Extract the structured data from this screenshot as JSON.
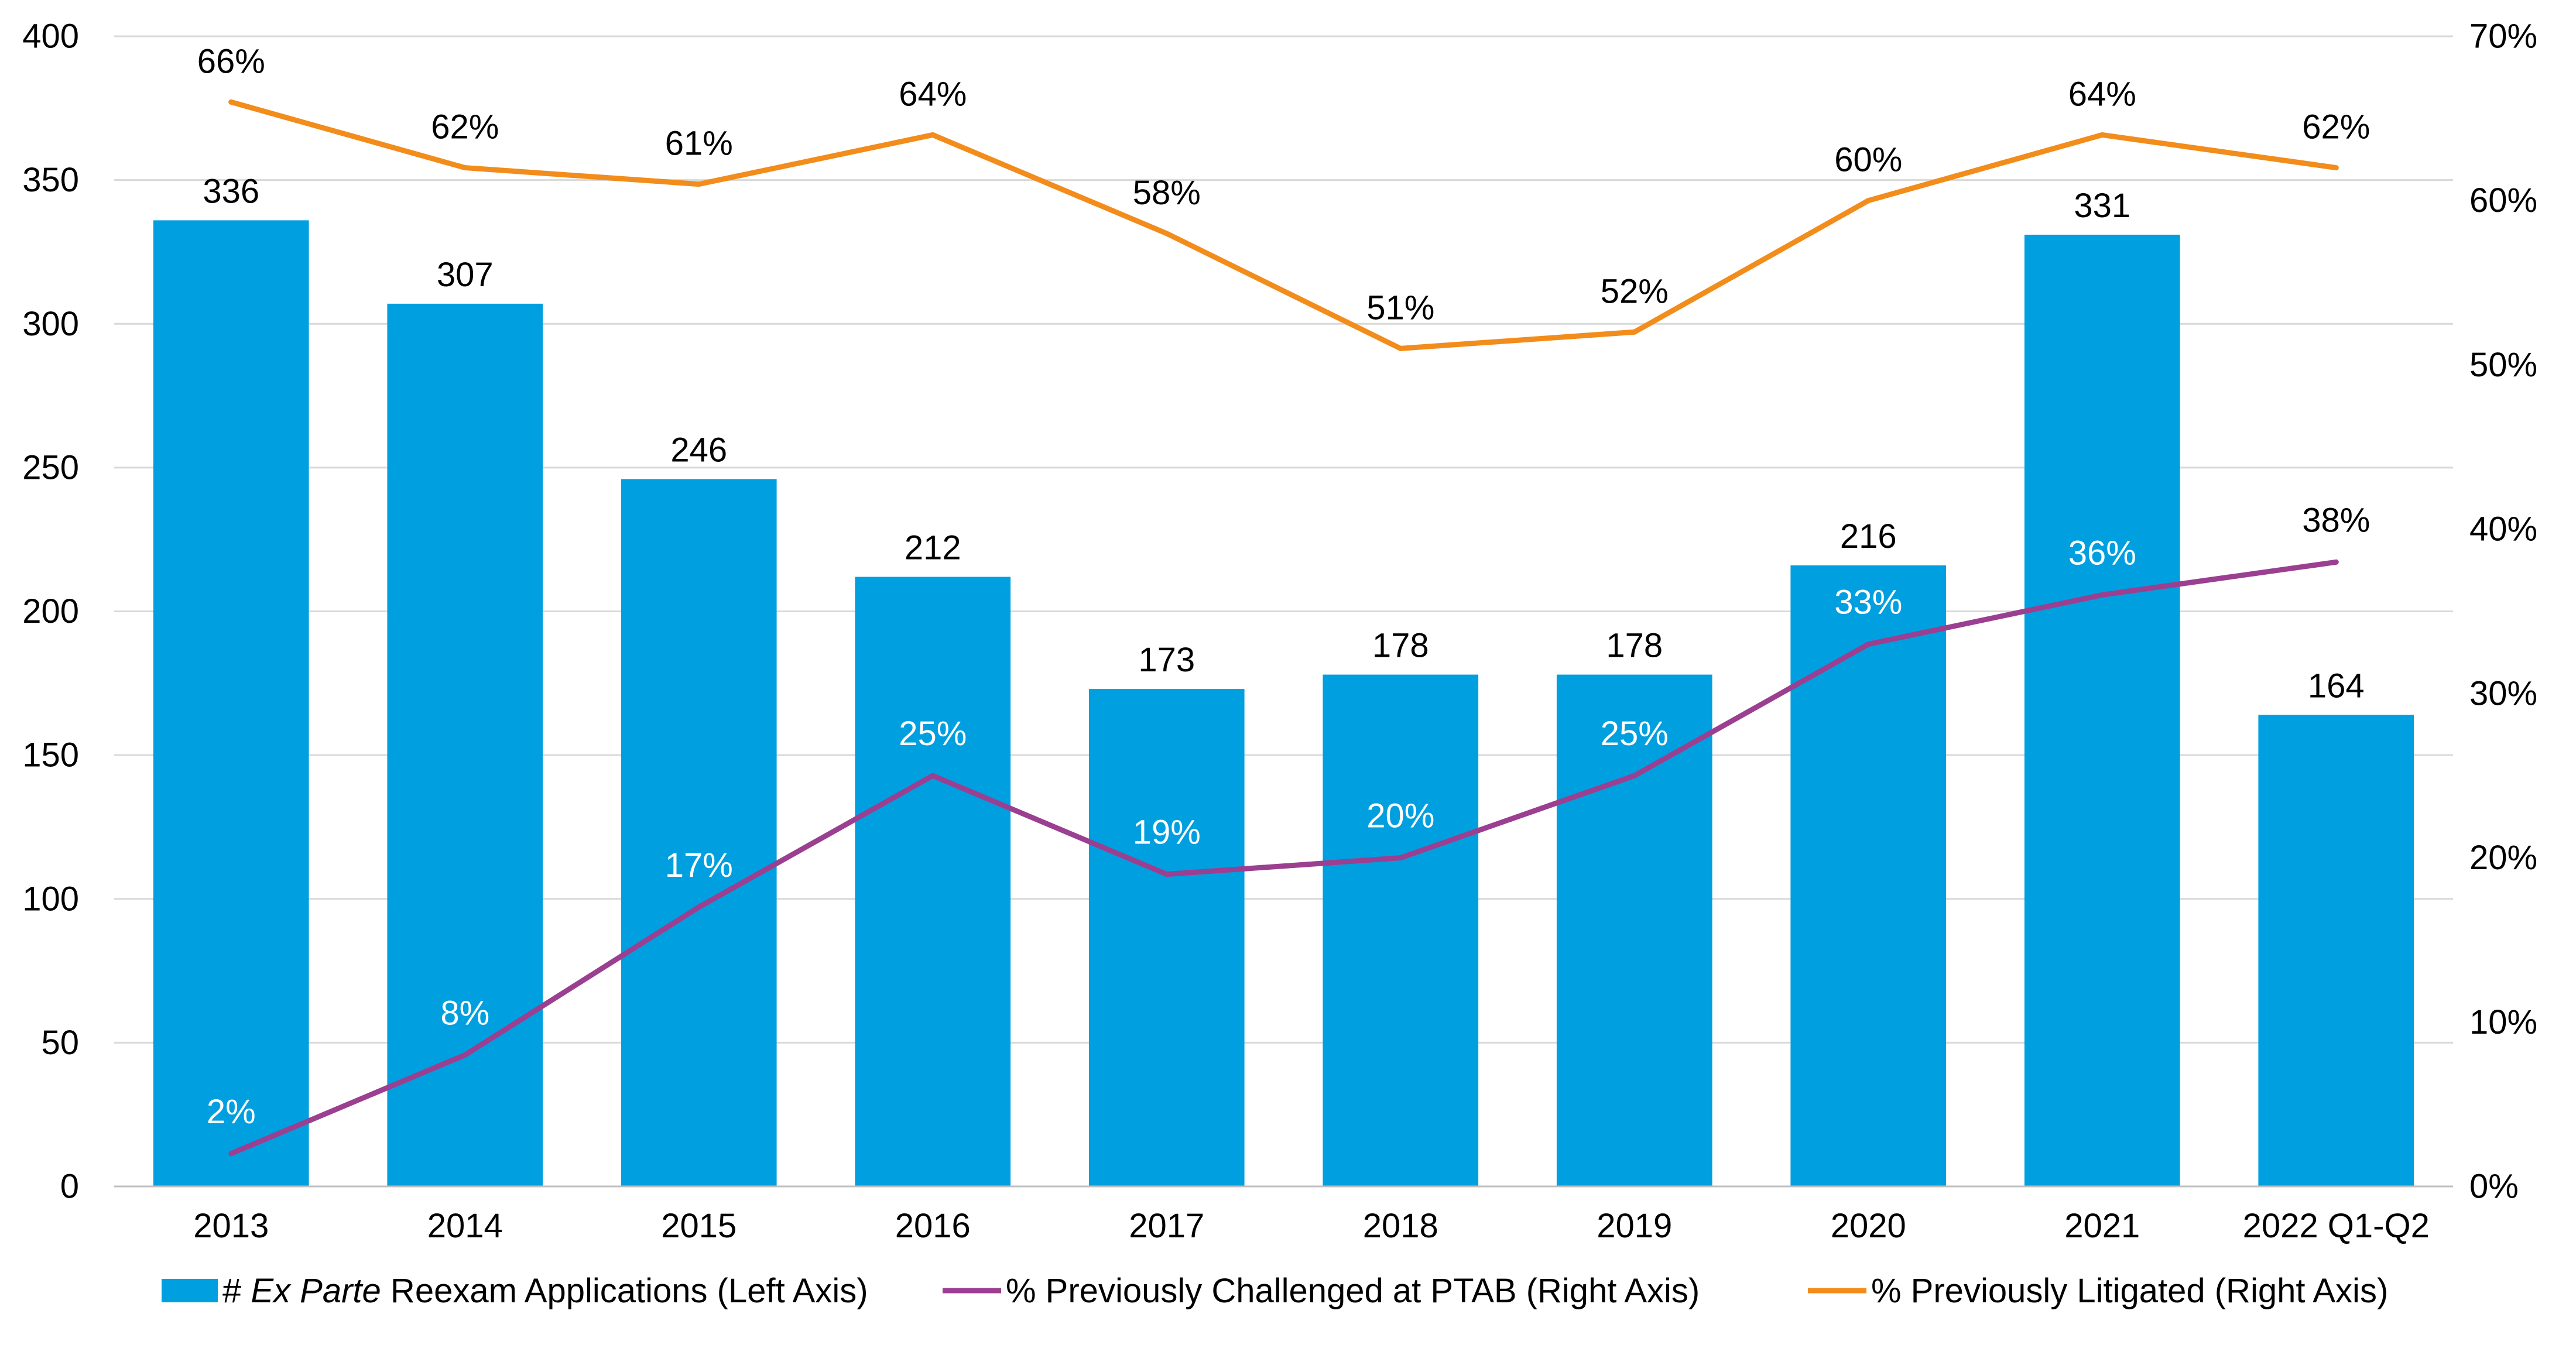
{
  "chart_data": {
    "type": "bar",
    "categories": [
      "2013",
      "2014",
      "2015",
      "2016",
      "2017",
      "2018",
      "2019",
      "2020",
      "2021",
      "2022 Q1-Q2"
    ],
    "series": [
      {
        "name": "# Ex Parte Reexam Applications (Left Axis)",
        "legend_parts": {
          "prefix": "# ",
          "italic": "Ex Parte",
          "suffix": " Reexam Applications (Left Axis)"
        },
        "type": "bar",
        "axis": "left",
        "color": "#009fdf",
        "values": [
          336,
          307,
          246,
          212,
          173,
          178,
          178,
          216,
          331,
          164
        ],
        "labels": [
          "336",
          "307",
          "246",
          "212",
          "173",
          "178",
          "178",
          "216",
          "331",
          "164"
        ]
      },
      {
        "name": "% Previously Challenged at PTAB (Right Axis)",
        "type": "line",
        "axis": "right",
        "color": "#9b3f91",
        "values": [
          2,
          8,
          17,
          25,
          19,
          20,
          25,
          33,
          36,
          38
        ],
        "labels": [
          "2%",
          "8%",
          "17%",
          "25%",
          "19%",
          "20%",
          "25%",
          "33%",
          "36%",
          "38%"
        ]
      },
      {
        "name": "% Previously Litigated (Right Axis)",
        "type": "line",
        "axis": "right",
        "color": "#f28c1b",
        "values": [
          66,
          62,
          61,
          64,
          58,
          51,
          52,
          60,
          64,
          62
        ],
        "labels": [
          "66%",
          "62%",
          "61%",
          "64%",
          "58%",
          "51%",
          "52%",
          "60%",
          "64%",
          "62%"
        ]
      }
    ],
    "y_left": {
      "ylim": [
        0,
        400
      ],
      "ticks": [
        "0",
        "50",
        "100",
        "150",
        "200",
        "250",
        "300",
        "350",
        "400"
      ]
    },
    "y_right": {
      "ylim": [
        0,
        70
      ],
      "ticks": [
        "0%",
        "10%",
        "20%",
        "30%",
        "40%",
        "50%",
        "60%",
        "70%"
      ]
    },
    "title": "",
    "xlabel": "",
    "ylabel": "",
    "grid": true,
    "legend_position": "bottom"
  }
}
